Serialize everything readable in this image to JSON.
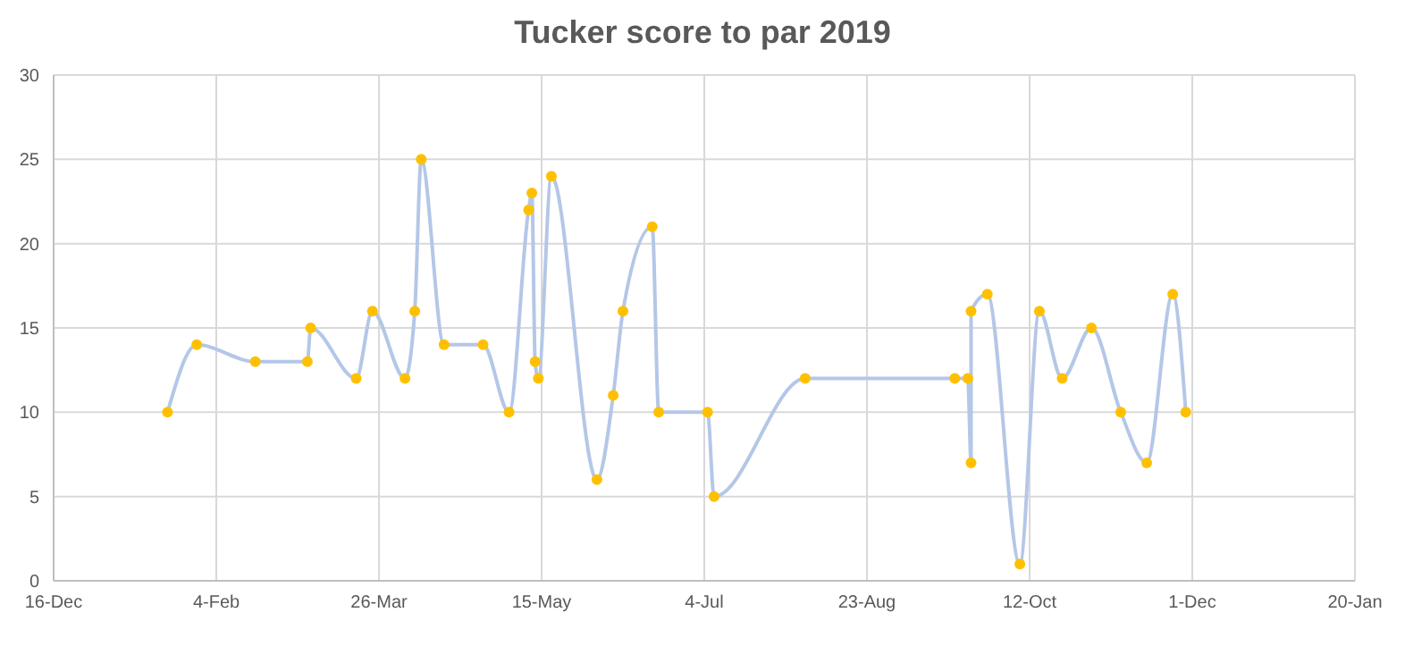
{
  "chart_data": {
    "type": "line",
    "title": "Tucker score to par 2019",
    "x": [
      "2019-01-20",
      "2019-01-29",
      "2019-02-16",
      "2019-03-04",
      "2019-03-05",
      "2019-03-19",
      "2019-03-24",
      "2019-04-03",
      "2019-04-06",
      "2019-04-08",
      "2019-04-15",
      "2019-04-27",
      "2019-05-05",
      "2019-05-11",
      "2019-05-12",
      "2019-05-13",
      "2019-05-14",
      "2019-05-18",
      "2019-06-01",
      "2019-06-06",
      "2019-06-09",
      "2019-06-18",
      "2019-06-20",
      "2019-07-05",
      "2019-07-07",
      "2019-08-04",
      "2019-09-19",
      "2019-09-23",
      "2019-09-24",
      "2019-09-24",
      "2019-09-29",
      "2019-10-09",
      "2019-10-15",
      "2019-10-22",
      "2019-10-31",
      "2019-11-09",
      "2019-11-17",
      "2019-11-25",
      "2019-11-29"
    ],
    "series": [
      {
        "color": "#b4c7e7",
        "values": [
          10,
          14,
          13,
          13,
          15,
          12,
          16,
          12,
          16,
          25,
          14,
          14,
          10,
          22,
          23,
          13,
          12,
          24,
          6,
          11,
          16,
          21,
          10,
          10,
          5,
          12,
          12,
          12,
          7,
          16,
          17,
          1,
          16,
          12,
          15,
          10,
          7,
          17,
          10
        ],
        "colors": [
          "#ffc000",
          "#ffc000",
          "#ffc000",
          "#ffc000",
          "#ffc000",
          "#ffc000",
          "#ffc000",
          "#ffc000",
          "#ffc000",
          "#ffc000",
          "#ffc000",
          "#ffc000",
          "#ffc000",
          "#ffc000",
          "#ffc000",
          "#ffc000",
          "#ffc000",
          "#ffc000",
          "#ffc000",
          "#ffc000",
          "#ffc000",
          "#ffc000",
          "#ffc000",
          "#ffc000",
          "#ffc000",
          "#ffc000",
          "#ffc000",
          "#ffc000",
          "#ffc000",
          "#ffc000",
          "#ffc000",
          "#ffc000",
          "#ffc000",
          "#ffc000",
          "#ffc000",
          "#ffc000",
          "#ffc000",
          "#ffc000",
          "#ffc000"
        ]
      }
    ],
    "xlim": [
      "2018-12-16",
      "2020-01-20"
    ],
    "xticks": [
      {
        "value": "2018-12-16",
        "label": "16-Dec"
      },
      {
        "value": "2019-02-04",
        "label": "4-Feb"
      },
      {
        "value": "2019-03-26",
        "label": "26-Mar"
      },
      {
        "value": "2019-05-15",
        "label": "15-May"
      },
      {
        "value": "2019-07-04",
        "label": "4-Jul"
      },
      {
        "value": "2019-08-23",
        "label": "23-Aug"
      },
      {
        "value": "2019-10-12",
        "label": "12-Oct"
      },
      {
        "value": "2019-12-01",
        "label": "1-Dec"
      },
      {
        "value": "2020-01-20",
        "label": "20-Jan"
      }
    ],
    "ylim": [
      0,
      30
    ],
    "yticks": [
      0,
      5,
      10,
      15,
      20,
      25,
      30
    ],
    "grid": true,
    "legend": false,
    "marker": "circle",
    "line_style": "solid"
  }
}
